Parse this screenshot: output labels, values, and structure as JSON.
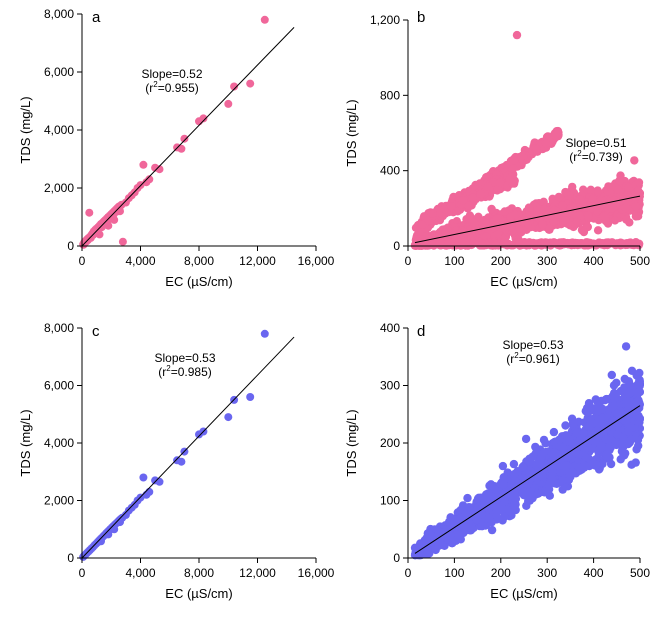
{
  "colors": {
    "pink": "#f0679a",
    "blue": "#6a66f0",
    "line": "#000000"
  },
  "chart_data": [
    {
      "panel": "a",
      "type": "scatter",
      "xlabel": "EC (µS/cm)",
      "ylabel": "TDS (mg/L)",
      "xlim": [
        0,
        16000
      ],
      "ylim": [
        0,
        8000
      ],
      "xticks": [
        0,
        4000,
        8000,
        12000,
        16000
      ],
      "yticks": [
        0,
        2000,
        4000,
        6000,
        8000
      ],
      "xtick_labels": [
        "0",
        "4,000",
        "8,000",
        "12,000",
        "16,000"
      ],
      "ytick_labels": [
        "0",
        "2,000",
        "4,000",
        "6,000",
        "8,000"
      ],
      "color_key": "pink",
      "annotation": {
        "slope": "Slope=0.52",
        "r2_prefix": "(r",
        "r2_sup": "2",
        "r2_suffix": "=0.955)"
      },
      "fit_line": {
        "slope": 0.52,
        "x": [
          0,
          14500
        ]
      },
      "points": [
        [
          80,
          60
        ],
        [
          150,
          120
        ],
        [
          250,
          180
        ],
        [
          350,
          230
        ],
        [
          450,
          280
        ],
        [
          500,
          1150
        ],
        [
          600,
          350
        ],
        [
          700,
          420
        ],
        [
          800,
          500
        ],
        [
          900,
          560
        ],
        [
          1000,
          600
        ],
        [
          1100,
          650
        ],
        [
          1200,
          700
        ],
        [
          1300,
          760
        ],
        [
          1400,
          800
        ],
        [
          1500,
          850
        ],
        [
          1600,
          900
        ],
        [
          1700,
          950
        ],
        [
          1800,
          1000
        ],
        [
          1900,
          1050
        ],
        [
          2000,
          1100
        ],
        [
          2100,
          1150
        ],
        [
          2200,
          1200
        ],
        [
          2300,
          1250
        ],
        [
          2400,
          1300
        ],
        [
          2500,
          1350
        ],
        [
          2600,
          1380
        ],
        [
          2700,
          1420
        ],
        [
          2800,
          150
        ],
        [
          1200,
          400
        ],
        [
          1800,
          700
        ],
        [
          2200,
          900
        ],
        [
          2600,
          1200
        ],
        [
          3000,
          1500
        ],
        [
          3200,
          1650
        ],
        [
          3400,
          1750
        ],
        [
          3600,
          1850
        ],
        [
          3800,
          2000
        ],
        [
          4000,
          2100
        ],
        [
          4200,
          2800
        ],
        [
          4400,
          2200
        ],
        [
          4600,
          2300
        ],
        [
          5000,
          2700
        ],
        [
          5300,
          2650
        ],
        [
          6500,
          3400
        ],
        [
          6800,
          3350
        ],
        [
          7000,
          3700
        ],
        [
          8000,
          4300
        ],
        [
          8300,
          4400
        ],
        [
          10000,
          4900
        ],
        [
          10400,
          5500
        ],
        [
          11500,
          5600
        ],
        [
          12500,
          7800
        ],
        [
          100,
          40
        ],
        [
          200,
          100
        ],
        [
          300,
          160
        ],
        [
          400,
          200
        ],
        [
          600,
          280
        ],
        [
          750,
          380
        ],
        [
          900,
          450
        ],
        [
          1050,
          520
        ],
        [
          1350,
          650
        ],
        [
          1550,
          780
        ],
        [
          1750,
          880
        ],
        [
          1950,
          980
        ],
        [
          2150,
          1080
        ],
        [
          2350,
          1180
        ],
        [
          2550,
          1280
        ]
      ]
    },
    {
      "panel": "b",
      "type": "scatter",
      "xlabel": "EC (µS/cm)",
      "ylabel": "TDS (mg/L)",
      "xlim": [
        0,
        500
      ],
      "ylim": [
        0,
        1200
      ],
      "xticks": [
        0,
        100,
        200,
        300,
        400,
        500
      ],
      "yticks": [
        0,
        400,
        800,
        1200
      ],
      "xtick_labels": [
        "0",
        "100",
        "200",
        "300",
        "400",
        "500"
      ],
      "ytick_labels": [
        "0",
        "400",
        "800",
        "1,200"
      ],
      "color_key": "pink",
      "annotation": {
        "slope": "Slope=0.51",
        "r2_prefix": "(r",
        "r2_sup": "2",
        "r2_suffix": "=0.739)"
      },
      "fit_line": {
        "slope": 0.51,
        "x": [
          15,
          500
        ]
      },
      "outlier": [
        235,
        1120
      ],
      "notes": "dense cloud of several thousand points around the fit line, an upper band of points up to ~600 mg/L near 320 µS/cm, and a floor of points near 0 mg/L across the EC range"
    },
    {
      "panel": "c",
      "type": "scatter",
      "xlabel": "EC (µS/cm)",
      "ylabel": "TDS (mg/L)",
      "xlim": [
        0,
        16000
      ],
      "ylim": [
        0,
        8000
      ],
      "xticks": [
        0,
        4000,
        8000,
        12000,
        16000
      ],
      "yticks": [
        0,
        2000,
        4000,
        6000,
        8000
      ],
      "xtick_labels": [
        "0",
        "4,000",
        "8,000",
        "12,000",
        "16,000"
      ],
      "ytick_labels": [
        "0",
        "2,000",
        "4,000",
        "6,000",
        "8,000"
      ],
      "color_key": "blue",
      "annotation": {
        "slope": "Slope=0.53",
        "r2_prefix": "(r",
        "r2_sup": "2",
        "r2_suffix": "=0.985)"
      },
      "fit_line": {
        "slope": 0.53,
        "x": [
          0,
          14500
        ]
      },
      "points": [
        [
          80,
          40
        ],
        [
          150,
          80
        ],
        [
          250,
          130
        ],
        [
          350,
          180
        ],
        [
          450,
          230
        ],
        [
          550,
          280
        ],
        [
          650,
          330
        ],
        [
          750,
          380
        ],
        [
          850,
          440
        ],
        [
          950,
          490
        ],
        [
          1050,
          540
        ],
        [
          1150,
          600
        ],
        [
          1250,
          650
        ],
        [
          1350,
          700
        ],
        [
          1450,
          750
        ],
        [
          1550,
          800
        ],
        [
          1650,
          860
        ],
        [
          1750,
          910
        ],
        [
          1850,
          960
        ],
        [
          1950,
          1010
        ],
        [
          2050,
          1060
        ],
        [
          2150,
          1110
        ],
        [
          2250,
          1160
        ],
        [
          2350,
          1210
        ],
        [
          2450,
          1260
        ],
        [
          2550,
          1310
        ],
        [
          2650,
          1360
        ],
        [
          2750,
          1400
        ],
        [
          3000,
          1500
        ],
        [
          3200,
          1650
        ],
        [
          3400,
          1750
        ],
        [
          3600,
          1850
        ],
        [
          3800,
          2000
        ],
        [
          4000,
          2100
        ],
        [
          4200,
          2800
        ],
        [
          4400,
          2200
        ],
        [
          4600,
          2300
        ],
        [
          5000,
          2700
        ],
        [
          5300,
          2650
        ],
        [
          6500,
          3400
        ],
        [
          6800,
          3350
        ],
        [
          7000,
          3700
        ],
        [
          8000,
          4300
        ],
        [
          8300,
          4400
        ],
        [
          10000,
          4900
        ],
        [
          10400,
          5500
        ],
        [
          11500,
          5600
        ],
        [
          12500,
          7800
        ],
        [
          1300,
          580
        ],
        [
          1800,
          820
        ],
        [
          2200,
          1000
        ],
        [
          2600,
          1250
        ]
      ]
    },
    {
      "panel": "d",
      "type": "scatter",
      "xlabel": "EC (µS/cm)",
      "ylabel": "TDS (mg/L)",
      "xlim": [
        0,
        500
      ],
      "ylim": [
        0,
        400
      ],
      "xticks": [
        0,
        100,
        200,
        300,
        400,
        500
      ],
      "yticks": [
        0,
        100,
        200,
        300,
        400
      ],
      "xtick_labels": [
        "0",
        "100",
        "200",
        "300",
        "400",
        "500"
      ],
      "ytick_labels": [
        "0",
        "100",
        "200",
        "300",
        "400"
      ],
      "color_key": "blue",
      "annotation": {
        "slope": "Slope=0.53",
        "r2_prefix": "(r",
        "r2_sup": "2",
        "r2_suffix": "=0.961)"
      },
      "fit_line": {
        "slope": 0.53,
        "x": [
          15,
          500
        ]
      },
      "outlier": [
        470,
        368
      ],
      "notes": "dense cloud of several thousand points around the fit line, widening with EC"
    }
  ]
}
